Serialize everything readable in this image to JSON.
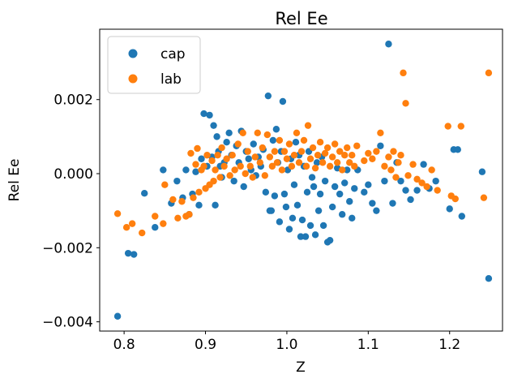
{
  "chart_data": {
    "type": "scatter",
    "title": "Rel Ee",
    "xlabel": "Z",
    "ylabel": "Rel Ee",
    "xlim": [
      0.77,
      1.265
    ],
    "ylim": [
      -0.00425,
      0.0039
    ],
    "xticks": [
      0.8,
      0.9,
      1.0,
      1.1,
      1.2
    ],
    "xtick_labels": [
      "0.8",
      "0.9",
      "1.0",
      "1.1",
      "1.2"
    ],
    "yticks": [
      -0.004,
      -0.002,
      0.0,
      0.002
    ],
    "ytick_labels": [
      "−0.004",
      "−0.002",
      "0.000",
      "0.002"
    ],
    "grid": false,
    "legend_position": "top-left",
    "series": [
      {
        "name": "cap",
        "color": "#1f77b4",
        "points": [
          [
            0.792,
            -0.00385
          ],
          [
            0.805,
            -0.00215
          ],
          [
            0.812,
            -0.00218
          ],
          [
            0.825,
            -0.00053
          ],
          [
            0.838,
            -0.00145
          ],
          [
            0.848,
            0.0001
          ],
          [
            0.858,
            -0.0008
          ],
          [
            0.865,
            -0.0002
          ],
          [
            0.872,
            -0.00065
          ],
          [
            0.876,
            0.0001
          ],
          [
            0.88,
            -0.0011
          ],
          [
            0.884,
            -0.00055
          ],
          [
            0.888,
            5e-05
          ],
          [
            0.892,
            -0.00085
          ],
          [
            0.895,
            0.0004
          ],
          [
            0.898,
            0.00162
          ],
          [
            0.902,
            0.0002
          ],
          [
            0.905,
            0.00158
          ],
          [
            0.908,
            0.00045
          ],
          [
            0.91,
            0.0013
          ],
          [
            0.912,
            -0.00085
          ],
          [
            0.914,
            0.001
          ],
          [
            0.916,
            0.0006
          ],
          [
            0.918,
            0.0002
          ],
          [
            0.92,
            -0.0001
          ],
          [
            0.923,
            0.0003
          ],
          [
            0.926,
            0.00085
          ],
          [
            0.929,
            0.0011
          ],
          [
            0.932,
            0.0005
          ],
          [
            0.935,
            -0.0002
          ],
          [
            0.938,
            0.00075
          ],
          [
            0.941,
            0.0003
          ],
          [
            0.944,
            0.00115
          ],
          [
            0.947,
            -0.00035
          ],
          [
            0.95,
            0.0006
          ],
          [
            0.953,
            0.0004
          ],
          [
            0.956,
            0.0001
          ],
          [
            0.959,
            0.0008
          ],
          [
            0.962,
            -5e-05
          ],
          [
            0.965,
            0.00045
          ],
          [
            0.968,
            0.0002
          ],
          [
            0.971,
            0.00065
          ],
          [
            0.974,
            -0.0005
          ],
          [
            0.977,
            0.0021
          ],
          [
            0.979,
            -0.001
          ],
          [
            0.981,
            -0.001
          ],
          [
            0.983,
            0.0009
          ],
          [
            0.985,
            -0.0006
          ],
          [
            0.987,
            0.0012
          ],
          [
            0.989,
            0.0003
          ],
          [
            0.991,
            -0.0013
          ],
          [
            0.993,
            0.0006
          ],
          [
            0.995,
            0.00195
          ],
          [
            0.997,
            -0.00055
          ],
          [
            0.999,
            -0.0009
          ],
          [
            1.001,
            0.0001
          ],
          [
            1.003,
            -0.0015
          ],
          [
            1.005,
            0.0004
          ],
          [
            1.007,
            -0.0012
          ],
          [
            1.009,
            -0.0003
          ],
          [
            1.011,
            0.00085
          ],
          [
            1.013,
            -0.00085
          ],
          [
            1.015,
            0.0005
          ],
          [
            1.017,
            -0.0017
          ],
          [
            1.019,
            -0.00125
          ],
          [
            1.021,
            0.0002
          ],
          [
            1.023,
            -0.0017
          ],
          [
            1.025,
            -0.0005
          ],
          [
            1.027,
            0.0006
          ],
          [
            1.029,
            -0.0014
          ],
          [
            1.031,
            -0.0001
          ],
          [
            1.033,
            -0.00035
          ],
          [
            1.035,
            -0.00165
          ],
          [
            1.037,
            0.0003
          ],
          [
            1.039,
            -0.001
          ],
          [
            1.041,
            -0.00055
          ],
          [
            1.043,
            0.00045
          ],
          [
            1.045,
            -0.0014
          ],
          [
            1.047,
            -0.0002
          ],
          [
            1.05,
            -0.00185
          ],
          [
            1.053,
            -0.0018
          ],
          [
            1.056,
            -0.0009
          ],
          [
            1.059,
            -0.00035
          ],
          [
            1.062,
            0.00015
          ],
          [
            1.065,
            -0.00055
          ],
          [
            1.068,
            -0.0011
          ],
          [
            1.071,
            -0.00025
          ],
          [
            1.074,
            0.0001
          ],
          [
            1.077,
            -0.00075
          ],
          [
            1.08,
            -0.0012
          ],
          [
            1.083,
            -0.0004
          ],
          [
            1.087,
            0.0001
          ],
          [
            1.095,
            -0.0005
          ],
          [
            1.1,
            -0.0003
          ],
          [
            1.105,
            -0.0008
          ],
          [
            1.11,
            -0.001
          ],
          [
            1.115,
            0.00075
          ],
          [
            1.12,
            -0.0002
          ],
          [
            1.125,
            0.0035
          ],
          [
            1.13,
            -0.0008
          ],
          [
            1.135,
            0.0003
          ],
          [
            1.14,
            -0.0002
          ],
          [
            1.146,
            -0.00045
          ],
          [
            1.152,
            -0.0007
          ],
          [
            1.16,
            -0.00045
          ],
          [
            1.168,
            0.00025
          ],
          [
            1.175,
            -0.0004
          ],
          [
            1.183,
            -0.0002
          ],
          [
            1.2,
            -0.00095
          ],
          [
            1.205,
            0.00065
          ],
          [
            1.21,
            0.00065
          ],
          [
            1.215,
            -0.00115
          ],
          [
            1.24,
            5e-05
          ],
          [
            1.248,
            -0.00283
          ]
        ]
      },
      {
        "name": "lab",
        "color": "#ff7f0e",
        "points": [
          [
            0.792,
            -0.00108
          ],
          [
            0.803,
            -0.00145
          ],
          [
            0.81,
            -0.00135
          ],
          [
            0.822,
            -0.0016
          ],
          [
            0.838,
            -0.00115
          ],
          [
            0.848,
            -0.00135
          ],
          [
            0.85,
            -0.0003
          ],
          [
            0.86,
            -0.0007
          ],
          [
            0.866,
            -0.0012
          ],
          [
            0.871,
            -0.00075
          ],
          [
            0.876,
            -0.00115
          ],
          [
            0.88,
            -0.0011
          ],
          [
            0.882,
            0.00055
          ],
          [
            0.885,
            -0.00065
          ],
          [
            0.888,
            0.00025
          ],
          [
            0.89,
            0.00068
          ],
          [
            0.892,
            -0.0005
          ],
          [
            0.895,
            0.0001
          ],
          [
            0.898,
            0.0002
          ],
          [
            0.9,
            -0.0004
          ],
          [
            0.902,
            0.0005
          ],
          [
            0.905,
            -0.0003
          ],
          [
            0.908,
            0.00035
          ],
          [
            0.91,
            -0.0002
          ],
          [
            0.912,
            0.0001
          ],
          [
            0.915,
            0.0005
          ],
          [
            0.918,
            -0.0001
          ],
          [
            0.92,
            0.0007
          ],
          [
            0.923,
            0.0002
          ],
          [
            0.926,
            0.0004
          ],
          [
            0.93,
            -5e-05
          ],
          [
            0.933,
            0.0005
          ],
          [
            0.936,
            0.0001
          ],
          [
            0.94,
            0.0008
          ],
          [
            0.943,
            0.0002
          ],
          [
            0.946,
            0.0011
          ],
          [
            0.949,
            0.0
          ],
          [
            0.952,
            0.0006
          ],
          [
            0.955,
            0.0002
          ],
          [
            0.958,
            -0.0001
          ],
          [
            0.961,
            0.00045
          ],
          [
            0.964,
            0.0011
          ],
          [
            0.967,
            0.0003
          ],
          [
            0.97,
            0.0007
          ],
          [
            0.973,
            -5e-05
          ],
          [
            0.976,
            0.00105
          ],
          [
            0.979,
            0.00045
          ],
          [
            0.982,
            0.0002
          ],
          [
            0.985,
            0.0006
          ],
          [
            0.988,
            0.0003
          ],
          [
            0.991,
            0.0009
          ],
          [
            0.994,
            0.0001
          ],
          [
            0.997,
            0.0006
          ],
          [
            1.0,
            0.0004
          ],
          [
            1.003,
            0.0008
          ],
          [
            1.006,
            0.0002
          ],
          [
            1.009,
            0.0005
          ],
          [
            1.012,
            0.0011
          ],
          [
            1.015,
            0.0003
          ],
          [
            1.018,
            0.0006
          ],
          [
            1.021,
            0.0009
          ],
          [
            1.024,
            0.0002
          ],
          [
            1.026,
            0.0013
          ],
          [
            1.029,
            0.0004
          ],
          [
            1.032,
            0.0007
          ],
          [
            1.035,
            0.00015
          ],
          [
            1.038,
            0.0005
          ],
          [
            1.041,
            0.00085
          ],
          [
            1.044,
            0.0003
          ],
          [
            1.047,
            0.00055
          ],
          [
            1.05,
            0.0007
          ],
          [
            1.053,
            0.0002
          ],
          [
            1.056,
            0.00045
          ],
          [
            1.059,
            0.0008
          ],
          [
            1.062,
            0.0003
          ],
          [
            1.065,
            0.0006
          ],
          [
            1.068,
            0.0001
          ],
          [
            1.071,
            0.0005
          ],
          [
            1.074,
            0.0007
          ],
          [
            1.077,
            0.0003
          ],
          [
            1.08,
            0.0005
          ],
          [
            1.083,
            0.0002
          ],
          [
            1.086,
            0.00075
          ],
          [
            1.095,
            0.00035
          ],
          [
            1.1,
            0.00055
          ],
          [
            1.105,
            0.0004
          ],
          [
            1.11,
            0.0006
          ],
          [
            1.115,
            0.0011
          ],
          [
            1.12,
            0.0002
          ],
          [
            1.125,
            0.00045
          ],
          [
            1.128,
            0.0001
          ],
          [
            1.131,
            0.0006
          ],
          [
            1.134,
            -0.0001
          ],
          [
            1.137,
            0.0003
          ],
          [
            1.14,
            0.0005
          ],
          [
            1.143,
            0.00272
          ],
          [
            1.146,
            0.0019
          ],
          [
            1.149,
            -5e-05
          ],
          [
            1.155,
            0.00025
          ],
          [
            1.16,
            -0.00015
          ],
          [
            1.166,
            -0.00025
          ],
          [
            1.172,
            -0.00035
          ],
          [
            1.178,
            0.0001
          ],
          [
            1.185,
            -0.00045
          ],
          [
            1.198,
            0.00128
          ],
          [
            1.202,
            -0.0006
          ],
          [
            1.207,
            -0.00068
          ],
          [
            1.214,
            0.00128
          ],
          [
            1.242,
            -0.00065
          ],
          [
            1.248,
            0.00272
          ]
        ]
      }
    ]
  }
}
